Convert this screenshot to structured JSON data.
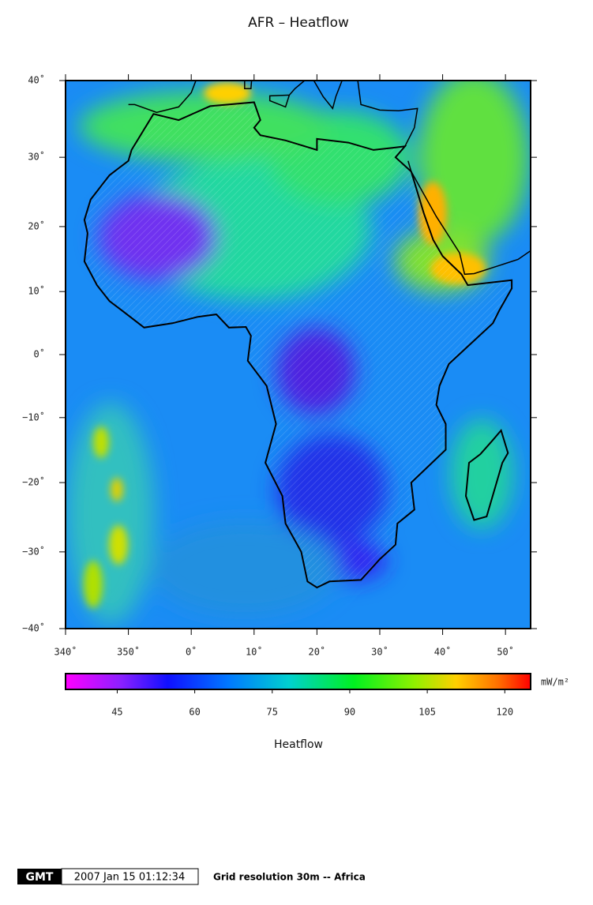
{
  "title": "AFR – Heatflow",
  "map": {
    "lon_range": [
      -20,
      54
    ],
    "lat_range": [
      -40,
      40
    ],
    "lon_ticks": [
      {
        "value": -20,
        "label": "340˚"
      },
      {
        "value": -10,
        "label": "350˚"
      },
      {
        "value": 0,
        "label": "0˚"
      },
      {
        "value": 10,
        "label": "10˚"
      },
      {
        "value": 20,
        "label": "20˚"
      },
      {
        "value": 30,
        "label": "30˚"
      },
      {
        "value": 40,
        "label": "40˚"
      },
      {
        "value": 50,
        "label": "50˚"
      }
    ],
    "lat_ticks": [
      {
        "value": 40,
        "label": "40˚"
      },
      {
        "value": 30,
        "label": "30˚"
      },
      {
        "value": 20,
        "label": "20˚"
      },
      {
        "value": 10,
        "label": "10˚"
      },
      {
        "value": 0,
        "label": "0˚"
      },
      {
        "value": -10,
        "label": "−10˚"
      },
      {
        "value": -20,
        "label": "−20˚"
      },
      {
        "value": -30,
        "label": "−30˚"
      },
      {
        "value": -40,
        "label": "−40˚"
      }
    ]
  },
  "colorbar": {
    "range": [
      35,
      125
    ],
    "ticks": [
      45,
      60,
      75,
      90,
      105,
      120
    ],
    "unit": "mW/m²",
    "title": "Heatflow"
  },
  "footer": {
    "logo": "GMT",
    "timestamp": "2007 Jan 15 01:12:34",
    "note": "Grid resolution 30m -- Africa"
  }
}
